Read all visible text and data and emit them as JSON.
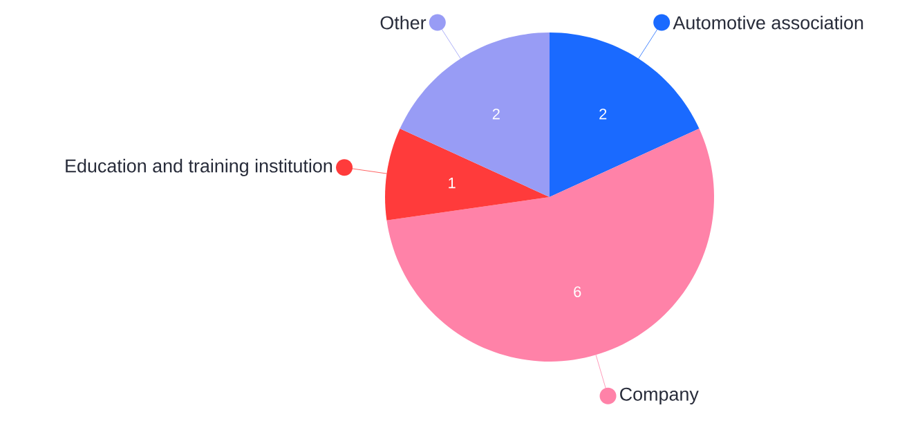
{
  "chart_data": {
    "type": "pie",
    "categories": [
      "Automotive association",
      "Company",
      "Education and training institution",
      "Other"
    ],
    "values": [
      2,
      6,
      1,
      2
    ],
    "colors": [
      "#1a6aff",
      "#ff82a8",
      "#ff3b3b",
      "#989cf5"
    ],
    "data_labels": true,
    "legend": "right"
  }
}
